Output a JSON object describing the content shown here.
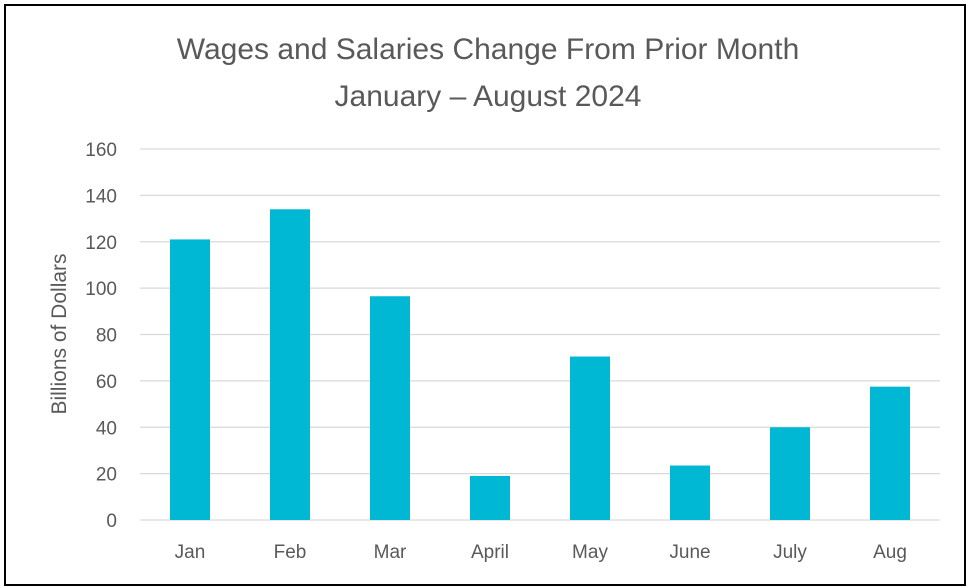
{
  "chart_data": {
    "type": "bar",
    "title": "Wages and Salaries Change From Prior Month",
    "subtitle": "January – August 2024",
    "xlabel": "",
    "ylabel": "Billions of Dollars",
    "categories": [
      "Jan",
      "Feb",
      "Mar",
      "April",
      "May",
      "June",
      "July",
      "Aug"
    ],
    "values": [
      121,
      134,
      96.5,
      19,
      70.5,
      23.5,
      40,
      57.5
    ],
    "ylim": [
      0,
      160
    ],
    "yticks": [
      "0",
      "20",
      "40",
      "60",
      "80",
      "100",
      "120",
      "140",
      "160"
    ],
    "grid": true,
    "legend": "none",
    "bar_color": "#00B8D4",
    "gridline_color": "#D9D9D9"
  }
}
